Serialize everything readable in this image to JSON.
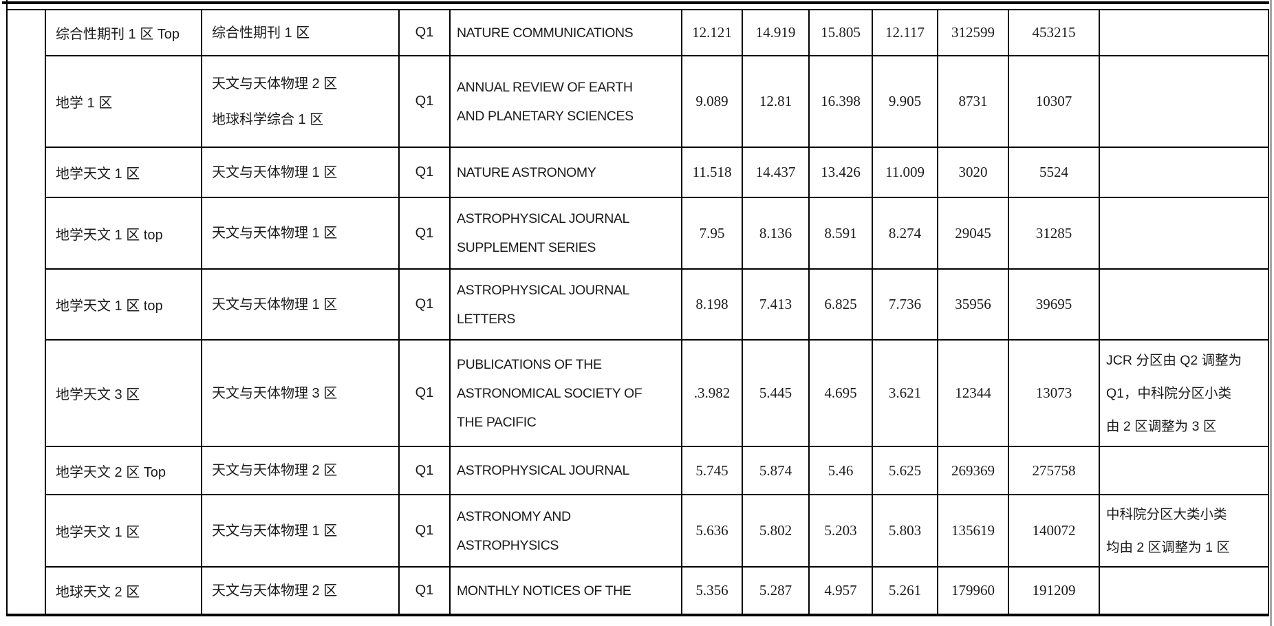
{
  "document": {
    "description_colors": {
      "border": "#000000",
      "page_edge": "#a6a6a6",
      "text": "#1b1b1b",
      "background": "#ffffff"
    }
  },
  "table": {
    "rows": [
      {
        "major": "综合性期刊 1 区 Top",
        "minor": [
          "综合性期刊 1 区"
        ],
        "jcr": "Q1",
        "journal": [
          "NATURE COMMUNICATIONS"
        ],
        "metrics": [
          "12.121",
          "14.919",
          "15.805",
          "12.117",
          "312599",
          "453215"
        ],
        "note": []
      },
      {
        "major": "地学 1 区",
        "minor": [
          "天文与天体物理 2 区",
          "地球科学综合 1 区"
        ],
        "jcr": "Q1",
        "journal": [
          "ANNUAL REVIEW OF EARTH",
          "AND PLANETARY SCIENCES"
        ],
        "metrics": [
          "9.089",
          "12.81",
          "16.398",
          "9.905",
          "8731",
          "10307"
        ],
        "note": []
      },
      {
        "major": "地学天文 1 区",
        "minor": [
          "天文与天体物理 1 区"
        ],
        "jcr": "Q1",
        "journal": [
          "NATURE ASTRONOMY"
        ],
        "metrics": [
          "11.518",
          "14.437",
          "13.426",
          "11.009",
          "3020",
          "5524"
        ],
        "note": []
      },
      {
        "major": "地学天文 1 区  top",
        "minor": [
          "天文与天体物理 1 区"
        ],
        "jcr": "Q1",
        "journal": [
          "ASTROPHYSICAL JOURNAL",
          "SUPPLEMENT SERIES"
        ],
        "metrics": [
          "7.95",
          "8.136",
          "8.591",
          "8.274",
          "29045",
          "31285"
        ],
        "note": []
      },
      {
        "major": "地学天文 1 区  top",
        "minor": [
          "天文与天体物理 1 区"
        ],
        "jcr": "Q1",
        "journal": [
          "ASTROPHYSICAL JOURNAL",
          "LETTERS"
        ],
        "metrics": [
          "8.198",
          "7.413",
          "6.825",
          "7.736",
          "35956",
          "39695"
        ],
        "note": []
      },
      {
        "major": "地学天文 3 区",
        "minor": [
          "天文与天体物理 3 区"
        ],
        "jcr": "Q1",
        "journal": [
          "PUBLICATIONS OF THE",
          "ASTRONOMICAL SOCIETY OF",
          "THE PACIFIC"
        ],
        "metrics": [
          ".3.982",
          "5.445",
          "4.695",
          "3.621",
          "12344",
          "13073"
        ],
        "note": [
          "JCR 分区由 Q2 调整为",
          "Q1，中科院分区小类",
          "由 2 区调整为 3 区"
        ]
      },
      {
        "major": "地学天文 2 区 Top",
        "minor": [
          "天文与天体物理 2 区"
        ],
        "jcr": "Q1",
        "journal": [
          "ASTROPHYSICAL JOURNAL"
        ],
        "metrics": [
          "5.745",
          "5.874",
          "5.46",
          "5.625",
          "269369",
          "275758"
        ],
        "note": []
      },
      {
        "major": "地学天文 1 区",
        "minor": [
          "天文与天体物理 1 区"
        ],
        "jcr": "Q1",
        "journal": [
          "ASTRONOMY AND",
          "ASTROPHYSICS"
        ],
        "metrics": [
          "5.636",
          "5.802",
          "5.203",
          "5.803",
          "135619",
          "140072"
        ],
        "note": [
          "中科院分区大类小类",
          "均由 2 区调整为 1 区"
        ]
      },
      {
        "major": "地球天文 2 区",
        "minor": [
          "天文与天体物理 2 区"
        ],
        "jcr": "Q1",
        "journal": [
          "MONTHLY NOTICES OF THE"
        ],
        "metrics": [
          "5.356",
          "5.287",
          "4.957",
          "5.261",
          "179960",
          "191209"
        ],
        "note": []
      }
    ]
  }
}
